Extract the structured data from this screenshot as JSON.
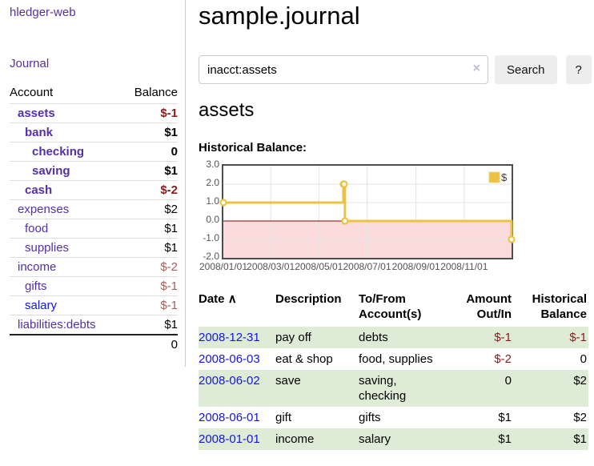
{
  "app": {
    "brand": "hledger-web"
  },
  "sidebar": {
    "journal_link": "Journal",
    "table": {
      "headers": {
        "account": "Account",
        "balance": "Balance"
      },
      "rows": [
        {
          "name": "assets",
          "level": 0,
          "bold": true,
          "link": "purple",
          "balance": "$-1",
          "balance_class": "neg-bold"
        },
        {
          "name": "bank",
          "level": 1,
          "bold": true,
          "link": "purple",
          "balance": "$1",
          "balance_class": "pos-bold"
        },
        {
          "name": "checking",
          "level": 2,
          "bold": true,
          "link": "purple",
          "balance": "0",
          "balance_class": "pos-bold"
        },
        {
          "name": "saving",
          "level": 2,
          "bold": true,
          "link": "purple",
          "balance": "$1",
          "balance_class": "pos-bold"
        },
        {
          "name": "cash",
          "level": 1,
          "bold": true,
          "link": "purple",
          "balance": "$-2",
          "balance_class": "neg-bold"
        },
        {
          "name": "expenses",
          "level": 0,
          "bold": false,
          "link": "purple",
          "balance": "$2",
          "balance_class": "pos"
        },
        {
          "name": "food",
          "level": 1,
          "bold": false,
          "link": "purple",
          "balance": "$1",
          "balance_class": "pos"
        },
        {
          "name": "supplies",
          "level": 1,
          "bold": false,
          "link": "purple",
          "balance": "$1",
          "balance_class": "pos"
        },
        {
          "name": "income",
          "level": 0,
          "bold": false,
          "link": "purple",
          "balance": "$-2",
          "balance_class": "neg-muted"
        },
        {
          "name": "gifts",
          "level": 1,
          "bold": false,
          "link": "purple",
          "balance": "$-1",
          "balance_class": "neg-muted"
        },
        {
          "name": "salary",
          "level": 1,
          "bold": false,
          "link": "blue",
          "balance": "$-1",
          "balance_class": "neg-muted"
        },
        {
          "name": "liabilities:debts",
          "level": 0,
          "bold": false,
          "link": "purple",
          "balance": "$1",
          "balance_class": "pos"
        }
      ],
      "total": "0"
    }
  },
  "header": {
    "title": "sample.journal"
  },
  "search": {
    "value": "inacct:assets",
    "clear_icon": "×",
    "button_label": "Search",
    "help_label": "?"
  },
  "account_page": {
    "title": "assets",
    "chart_label": "Historical Balance:"
  },
  "chart_data": {
    "type": "line",
    "step": true,
    "title": "Historical Balance:",
    "series": [
      {
        "name": "$",
        "color": "#edc240",
        "points": [
          [
            "2008-01-01",
            1
          ],
          [
            "2008-06-01",
            2
          ],
          [
            "2008-06-02",
            2
          ],
          [
            "2008-06-03",
            0
          ],
          [
            "2008-12-31",
            -1
          ]
        ]
      }
    ],
    "x_range": [
      "2008-01-01",
      "2008-12-31"
    ],
    "x_tick_labels": [
      "2008/01/01",
      "2008/03/01",
      "2008/05/01",
      "2008/07/01",
      "2008/09/01",
      "2008/11/01"
    ],
    "y_ticks": [
      3.0,
      2.0,
      1.0,
      0.0,
      -1.0,
      -2.0
    ],
    "ylim": [
      -2,
      3
    ],
    "grid": true,
    "legend_position": "top-right",
    "negative_region_fill": "#fbdbdb",
    "zero_line_color": "#8b0000",
    "gridline_color": "#e3e3e3",
    "legend_swatch_border": "#e9d489"
  },
  "register": {
    "headers": {
      "date": "Date",
      "description": "Description",
      "accounts": "To/From Account(s)",
      "amount": "Amount Out/In",
      "balance": "Historical Balance"
    },
    "sort_icon": "∧",
    "rows": [
      {
        "date": "2008-12-31",
        "description": "pay off",
        "accounts": "debts",
        "amount": "$-1",
        "amount_neg": true,
        "balance": "$-1",
        "balance_neg": true
      },
      {
        "date": "2008-06-03",
        "description": "eat & shop",
        "accounts": "food, supplies",
        "amount": "$-2",
        "amount_neg": true,
        "balance": "0",
        "balance_neg": false
      },
      {
        "date": "2008-06-02",
        "description": "save",
        "accounts": "saving, checking",
        "amount": "0",
        "amount_neg": false,
        "balance": "$2",
        "balance_neg": false
      },
      {
        "date": "2008-06-01",
        "description": "gift",
        "accounts": "gifts",
        "amount": "$1",
        "amount_neg": false,
        "balance": "$2",
        "balance_neg": false
      },
      {
        "date": "2008-01-01",
        "description": "income",
        "accounts": "salary",
        "amount": "$1",
        "amount_neg": false,
        "balance": "$1",
        "balance_neg": false
      }
    ]
  },
  "colors": {
    "link_purple": "#5430a5",
    "link_blue": "#1515e6",
    "negative_bold_red": "#871c1c",
    "negative_muted_red": "#a85c5c",
    "row_stripe_green": "#deecd7",
    "series_gold": "#edc240",
    "negative_area_pink": "#fbdbdb",
    "zero_line_red": "#8b0000",
    "button_gray": "#ededed"
  }
}
